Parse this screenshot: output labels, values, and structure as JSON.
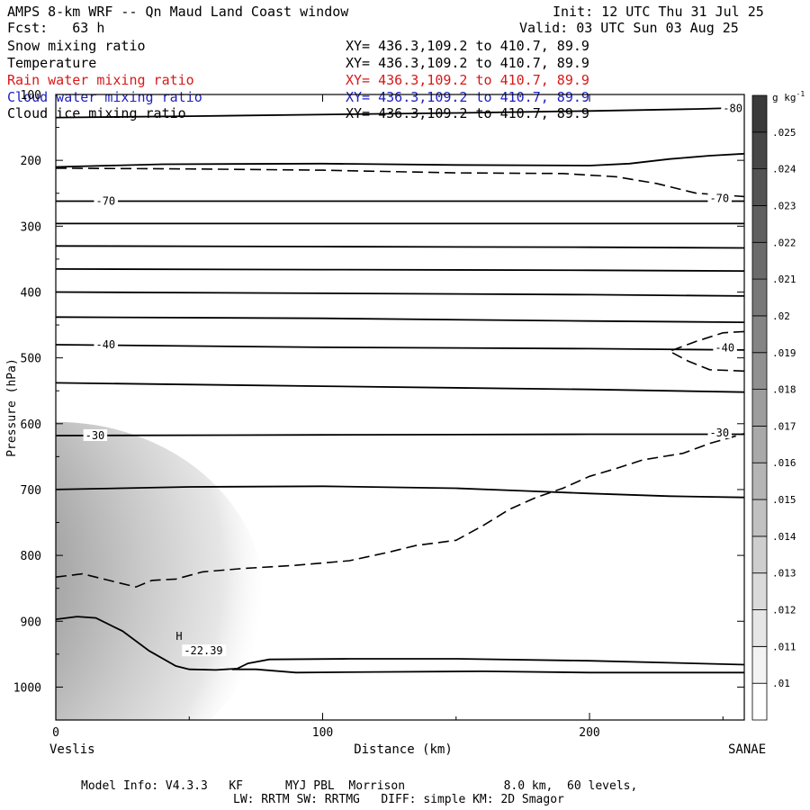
{
  "header": {
    "title": "AMPS 8-km WRF -- Qn Maud Land Coast window",
    "init": "Init: 12 UTC Thu 31 Jul 25",
    "fcst": "Fcst:   63 h",
    "valid": "Valid: 03 UTC Sun 03 Aug 25"
  },
  "fields": [
    {
      "name": "Snow mixing ratio",
      "xy": "XY= 436.3,109.2 to 410.7, 89.9",
      "color": "#000000"
    },
    {
      "name": "Temperature",
      "xy": "XY= 436.3,109.2 to 410.7, 89.9",
      "color": "#000000"
    },
    {
      "name": "Rain water mixing ratio",
      "xy": "XY= 436.3,109.2 to 410.7, 89.9",
      "color": "#d81818"
    },
    {
      "name": "Cloud water mixing ratio",
      "xy": "XY= 436.3,109.2 to 410.7, 89.9",
      "color": "#2020c0"
    },
    {
      "name": "Cloud ice mixing ratio",
      "xy": "XY= 436.3,109.2 to 410.7, 89.9",
      "color": "#000000"
    }
  ],
  "footer": {
    "line1": "Model Info: V4.3.3   KF      MYJ PBL  Morrison              8.0 km,  60 levels,",
    "line2": "LW: RRTM SW: RRTMG   DIFF: simple KM: 2D Smagor"
  },
  "chart_data": {
    "type": "cross-section",
    "xlabel": "Distance (km)",
    "ylabel": "Pressure (hPa)",
    "xlim": [
      0,
      258
    ],
    "ylim": [
      1050,
      100
    ],
    "x_ticks": [
      0,
      100,
      200
    ],
    "y_ticks": [
      100,
      200,
      300,
      400,
      500,
      600,
      700,
      800,
      900,
      1000
    ],
    "endpoint_left": "Veslis",
    "endpoint_right": "SANAE",
    "colorbar": {
      "unit": "g kg",
      "unit_exp": "-1",
      "levels": [
        ".01",
        ".011",
        ".012",
        ".013",
        ".014",
        ".015",
        ".016",
        ".017",
        ".018",
        ".019",
        ".02",
        ".021",
        ".022",
        ".023",
        ".024",
        ".025"
      ]
    },
    "isotherms": [
      {
        "points": [
          [
            0,
            135
          ],
          [
            50,
            133
          ],
          [
            150,
            128
          ],
          [
            200,
            125
          ],
          [
            240,
            122
          ],
          [
            258,
            120
          ]
        ]
      },
      {
        "points": [
          [
            0,
            210
          ],
          [
            40,
            206
          ],
          [
            100,
            205
          ],
          [
            150,
            207
          ],
          [
            200,
            208
          ],
          [
            215,
            205
          ],
          [
            230,
            198
          ],
          [
            245,
            193
          ],
          [
            258,
            190
          ]
        ]
      },
      {
        "points": [
          [
            0,
            262
          ],
          [
            100,
            262
          ],
          [
            200,
            262
          ],
          [
            258,
            262
          ]
        ]
      },
      {
        "points": [
          [
            0,
            296
          ],
          [
            100,
            296
          ],
          [
            200,
            296
          ],
          [
            258,
            296
          ]
        ]
      },
      {
        "points": [
          [
            0,
            330
          ],
          [
            100,
            331
          ],
          [
            200,
            332
          ],
          [
            258,
            333
          ]
        ]
      },
      {
        "points": [
          [
            0,
            365
          ],
          [
            100,
            366
          ],
          [
            200,
            367
          ],
          [
            258,
            368
          ]
        ]
      },
      {
        "points": [
          [
            0,
            400
          ],
          [
            100,
            402
          ],
          [
            200,
            404
          ],
          [
            258,
            406
          ]
        ]
      },
      {
        "points": [
          [
            0,
            438
          ],
          [
            100,
            440
          ],
          [
            200,
            444
          ],
          [
            258,
            446
          ]
        ]
      },
      {
        "points": [
          [
            0,
            480
          ],
          [
            100,
            484
          ],
          [
            200,
            486
          ],
          [
            258,
            488
          ]
        ]
      },
      {
        "points": [
          [
            0,
            538
          ],
          [
            100,
            543
          ],
          [
            200,
            548
          ],
          [
            258,
            552
          ]
        ]
      },
      {
        "points": [
          [
            0,
            618
          ],
          [
            100,
            617
          ],
          [
            200,
            616
          ],
          [
            258,
            616
          ]
        ]
      },
      {
        "points": [
          [
            0,
            700
          ],
          [
            50,
            696
          ],
          [
            100,
            695
          ],
          [
            150,
            698
          ],
          [
            175,
            702
          ],
          [
            200,
            706
          ],
          [
            230,
            710
          ],
          [
            258,
            712
          ]
        ]
      },
      {
        "points": [
          [
            0,
            897
          ],
          [
            8,
            893
          ],
          [
            15,
            895
          ],
          [
            25,
            915
          ],
          [
            35,
            945
          ],
          [
            45,
            968
          ],
          [
            50,
            973
          ],
          [
            60,
            974
          ],
          [
            68,
            972
          ],
          [
            72,
            964
          ],
          [
            80,
            958
          ],
          [
            110,
            957
          ],
          [
            150,
            957
          ],
          [
            200,
            960
          ],
          [
            258,
            966
          ]
        ]
      },
      {
        "points": [
          [
            66,
            973
          ],
          [
            75,
            973
          ],
          [
            90,
            978
          ],
          [
            120,
            977
          ],
          [
            160,
            976
          ],
          [
            200,
            978
          ],
          [
            258,
            978
          ]
        ]
      }
    ],
    "dashed_lines": [
      {
        "points": [
          [
            0,
            212
          ],
          [
            50,
            213
          ],
          [
            100,
            215
          ],
          [
            150,
            219
          ],
          [
            190,
            220
          ],
          [
            210,
            225
          ],
          [
            225,
            235
          ],
          [
            240,
            250
          ],
          [
            258,
            255
          ]
        ]
      },
      {
        "points": [
          [
            0,
            833
          ],
          [
            10,
            828
          ],
          [
            20,
            838
          ],
          [
            30,
            848
          ],
          [
            36,
            838
          ],
          [
            45,
            836
          ],
          [
            55,
            825
          ],
          [
            70,
            820
          ],
          [
            90,
            815
          ],
          [
            110,
            808
          ],
          [
            125,
            795
          ],
          [
            135,
            785
          ],
          [
            150,
            777
          ],
          [
            160,
            755
          ],
          [
            170,
            730
          ],
          [
            180,
            712
          ],
          [
            190,
            698
          ],
          [
            200,
            680
          ],
          [
            210,
            668
          ],
          [
            220,
            655
          ],
          [
            235,
            645
          ],
          [
            245,
            630
          ],
          [
            258,
            615
          ]
        ]
      },
      {
        "points": [
          [
            258,
            460
          ],
          [
            250,
            462
          ],
          [
            240,
            475
          ],
          [
            230,
            490
          ],
          [
            237,
            505
          ],
          [
            245,
            518
          ],
          [
            258,
            520
          ]
        ]
      }
    ],
    "contour_labels": [
      {
        "text": "-80",
        "x": 250,
        "p": 121
      },
      {
        "text": "-70",
        "x": 15,
        "p": 262
      },
      {
        "text": "-70",
        "x": 245,
        "p": 258
      },
      {
        "text": "-40",
        "x": 15,
        "p": 480
      },
      {
        "text": "-40",
        "x": 247,
        "p": 485
      },
      {
        "text": "-30",
        "x": 11,
        "p": 618
      },
      {
        "text": "-30",
        "x": 245,
        "p": 614
      },
      {
        "text": "-22.39",
        "x": 48,
        "p": 945
      }
    ],
    "high_marker": {
      "text": "H",
      "x": 45,
      "p": 923
    }
  }
}
